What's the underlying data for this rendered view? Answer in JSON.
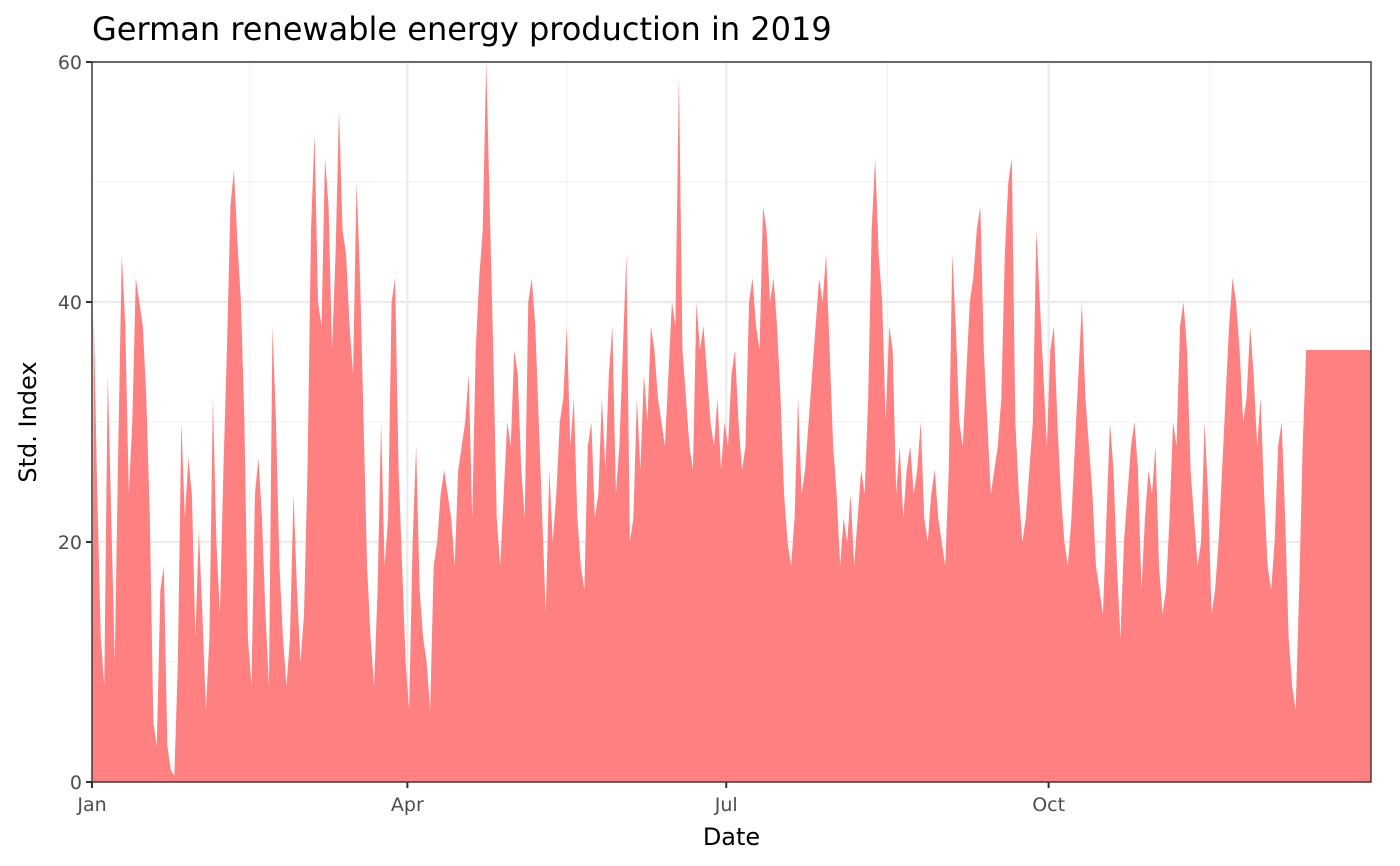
{
  "chart_data": {
    "type": "area",
    "title": "German renewable energy production in 2019",
    "xlabel": "Date",
    "ylabel": "Std. Index",
    "x_range": [
      "2019-01-01",
      "2019-12-31"
    ],
    "ylim": [
      0,
      60
    ],
    "x_ticks": [
      {
        "date": "2019-01-01",
        "label": "Jan"
      },
      {
        "date": "2019-04-01",
        "label": "Apr"
      },
      {
        "date": "2019-07-01",
        "label": "Jul"
      },
      {
        "date": "2019-10-01",
        "label": "Oct"
      }
    ],
    "y_ticks": [
      0,
      20,
      40,
      60
    ],
    "grid": true,
    "fill_color": "#ff8080",
    "series": [
      {
        "resolution": "daily",
        "start": "2019-01-01",
        "values": [
          39,
          24,
          12,
          8,
          34,
          22,
          10,
          28,
          44,
          38,
          24,
          30,
          42,
          40,
          38,
          32,
          22,
          5,
          3,
          16,
          18,
          3,
          1,
          0.5,
          10,
          30,
          22,
          27,
          24,
          12,
          21,
          14,
          6,
          12,
          32,
          20,
          14,
          26,
          36,
          48,
          51,
          45,
          40,
          30,
          12,
          8,
          24,
          27,
          22,
          14,
          8,
          38,
          30,
          18,
          12,
          8,
          12,
          24,
          16,
          10,
          14,
          26,
          46,
          54,
          40,
          38,
          52,
          48,
          36,
          44,
          56,
          46,
          44,
          38,
          34,
          50,
          42,
          30,
          18,
          12,
          8,
          16,
          30,
          18,
          22,
          40,
          42,
          26,
          18,
          10,
          6,
          20,
          28,
          16,
          12,
          10,
          6,
          18,
          20,
          24,
          26,
          24,
          22,
          18,
          26,
          28,
          30,
          34,
          22,
          36,
          42,
          46,
          60,
          48,
          36,
          22,
          18,
          24,
          30,
          28,
          36,
          34,
          26,
          22,
          40,
          42,
          38,
          30,
          22,
          14,
          26,
          20,
          24,
          30,
          32,
          38,
          28,
          32,
          22,
          18,
          16,
          28,
          30,
          22,
          24,
          32,
          26,
          34,
          38,
          24,
          28,
          36,
          44,
          20,
          22,
          32,
          26,
          34,
          30,
          38,
          36,
          32,
          30,
          28,
          34,
          40,
          38,
          59,
          36,
          32,
          28,
          26,
          40,
          36,
          38,
          34,
          30,
          28,
          32,
          26,
          30,
          28,
          34,
          36,
          30,
          26,
          28,
          40,
          42,
          38,
          36,
          48,
          46,
          40,
          42,
          38,
          32,
          24,
          20,
          18,
          22,
          32,
          24,
          26,
          30,
          34,
          38,
          42,
          40,
          44,
          36,
          28,
          24,
          18,
          22,
          20,
          24,
          18,
          22,
          26,
          24,
          32,
          46,
          52,
          44,
          40,
          30,
          38,
          36,
          24,
          28,
          22,
          26,
          28,
          24,
          26,
          30,
          22,
          20,
          24,
          26,
          22,
          20,
          18,
          26,
          44,
          38,
          30,
          28,
          34,
          40,
          42,
          46,
          48,
          36,
          30,
          24,
          26,
          28,
          32,
          44,
          50,
          52,
          30,
          24,
          20,
          22,
          26,
          30,
          46,
          40,
          34,
          28,
          36,
          38,
          30,
          24,
          20,
          18,
          22,
          28,
          34,
          40,
          32,
          28,
          24,
          18,
          16,
          14,
          22,
          30,
          26,
          18,
          12,
          20,
          24,
          28,
          30,
          26,
          16,
          22,
          26,
          24,
          28,
          18,
          14,
          16,
          22,
          30,
          28,
          38,
          40,
          36,
          26,
          22,
          18,
          20,
          30,
          24,
          14,
          16,
          20,
          26,
          32,
          38,
          42,
          40,
          36,
          30,
          32,
          38,
          34,
          28,
          32,
          24,
          18,
          16,
          20,
          28,
          30,
          22,
          12,
          8,
          6,
          16,
          28,
          36
        ]
      }
    ]
  }
}
